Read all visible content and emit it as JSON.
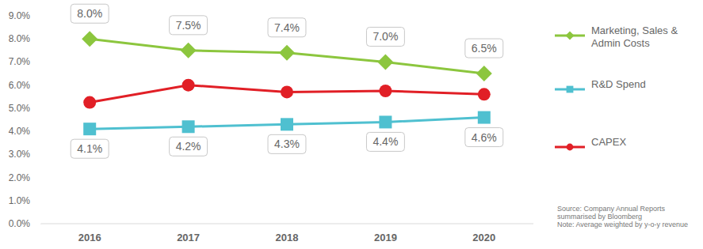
{
  "chart_data": {
    "type": "line",
    "categories": [
      "2016",
      "2017",
      "2018",
      "2019",
      "2020"
    ],
    "series": [
      {
        "name": "Marketing, Sales & Admin Costs",
        "color": "#8cc63e",
        "marker": "diamond",
        "data_labels": true,
        "values": [
          8.0,
          7.5,
          7.4,
          7.0,
          6.5
        ],
        "value_labels": [
          "8.0%",
          "7.5%",
          "7.4%",
          "7.0%",
          "6.5%"
        ]
      },
      {
        "name": "R&D Spend",
        "color": "#4fc0d0",
        "marker": "square",
        "data_labels": true,
        "values": [
          4.1,
          4.2,
          4.3,
          4.4,
          4.6
        ],
        "value_labels": [
          "4.1%",
          "4.2%",
          "4.3%",
          "4.4%",
          "4.6%"
        ]
      },
      {
        "name": "CAPEX",
        "color": "#e11f26",
        "marker": "circle",
        "values": [
          5.25,
          6.0,
          5.7,
          5.75,
          5.6
        ]
      }
    ],
    "ylim": [
      0,
      9
    ],
    "yticks": [
      {
        "value": 0,
        "label": "0.0%"
      },
      {
        "value": 1,
        "label": "1.0%"
      },
      {
        "value": 2,
        "label": "2.0%"
      },
      {
        "value": 3,
        "label": "3.0%"
      },
      {
        "value": 4,
        "label": "4.0%"
      },
      {
        "value": 5,
        "label": "5.0%"
      },
      {
        "value": 6,
        "label": "6.0%"
      },
      {
        "value": 7,
        "label": "7.0%"
      },
      {
        "value": 8,
        "label": "8.0%"
      },
      {
        "value": 9,
        "label": "9.0%"
      }
    ],
    "grid": false,
    "legend": "right",
    "annotations": [
      "Source: Company Annual Reports summarised by Bloomberg",
      "Note: Average weighted by y-o-y revenue"
    ]
  }
}
